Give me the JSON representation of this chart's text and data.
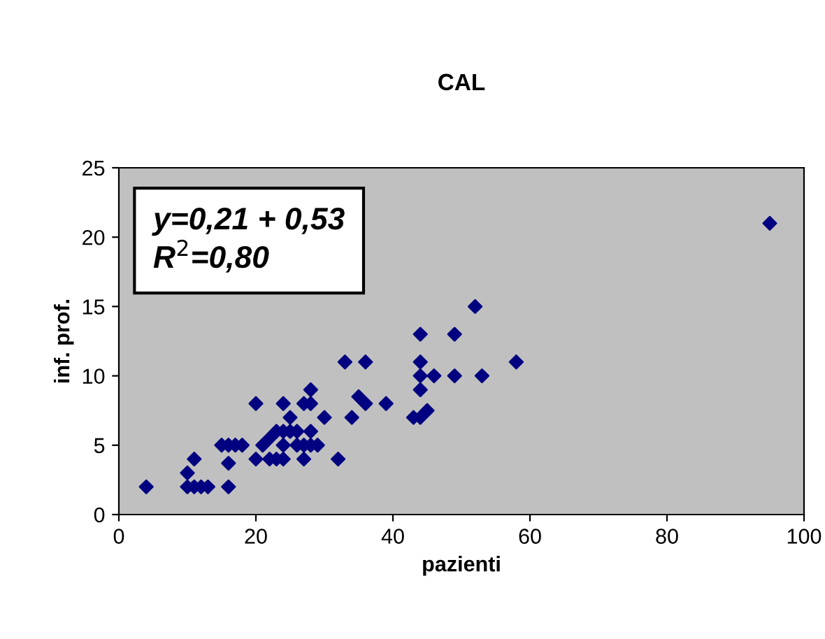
{
  "chart_data": {
    "type": "scatter",
    "title": "CAL",
    "xlabel": "pazienti",
    "ylabel": "inf. prof.",
    "annotations": [
      "y=0,21 + 0,53\nR$^{2}$=0,80"
    ],
    "series": [
      {
        "color": "#000080",
        "x": [
          4,
          10,
          11,
          12,
          13,
          10,
          11,
          16,
          16,
          15,
          16,
          17,
          18,
          20,
          20,
          21,
          22,
          22,
          23,
          23,
          24,
          24,
          24,
          24,
          25,
          25,
          26,
          26,
          27,
          27,
          27,
          28,
          28,
          28,
          28,
          29,
          30,
          32,
          33,
          34,
          35,
          36,
          36,
          39,
          43,
          44,
          44,
          44,
          44,
          44,
          45,
          46,
          49,
          49,
          52,
          53,
          58,
          95
        ],
        "values": [
          2,
          2,
          2,
          2,
          2,
          3,
          4,
          2,
          3.7,
          5,
          5,
          5,
          5,
          4,
          8,
          5,
          5.5,
          4,
          4,
          6,
          4,
          5,
          6,
          8,
          6,
          7,
          6,
          5,
          5,
          4,
          8,
          5,
          6,
          8,
          9,
          5,
          7,
          4,
          11,
          7,
          8.5,
          11,
          8,
          8,
          7,
          7,
          9,
          10,
          11,
          13,
          7.5,
          10,
          10,
          13,
          15,
          10,
          11,
          21
        ]
      }
    ],
    "marker": "diamond",
    "xlim": [
      0,
      100
    ],
    "ylim": [
      0,
      25
    ],
    "xticks": [
      0,
      20,
      40,
      60,
      80,
      100
    ],
    "yticks": [
      0,
      5,
      10,
      15,
      20,
      25
    ],
    "grid": false,
    "legend": false
  }
}
